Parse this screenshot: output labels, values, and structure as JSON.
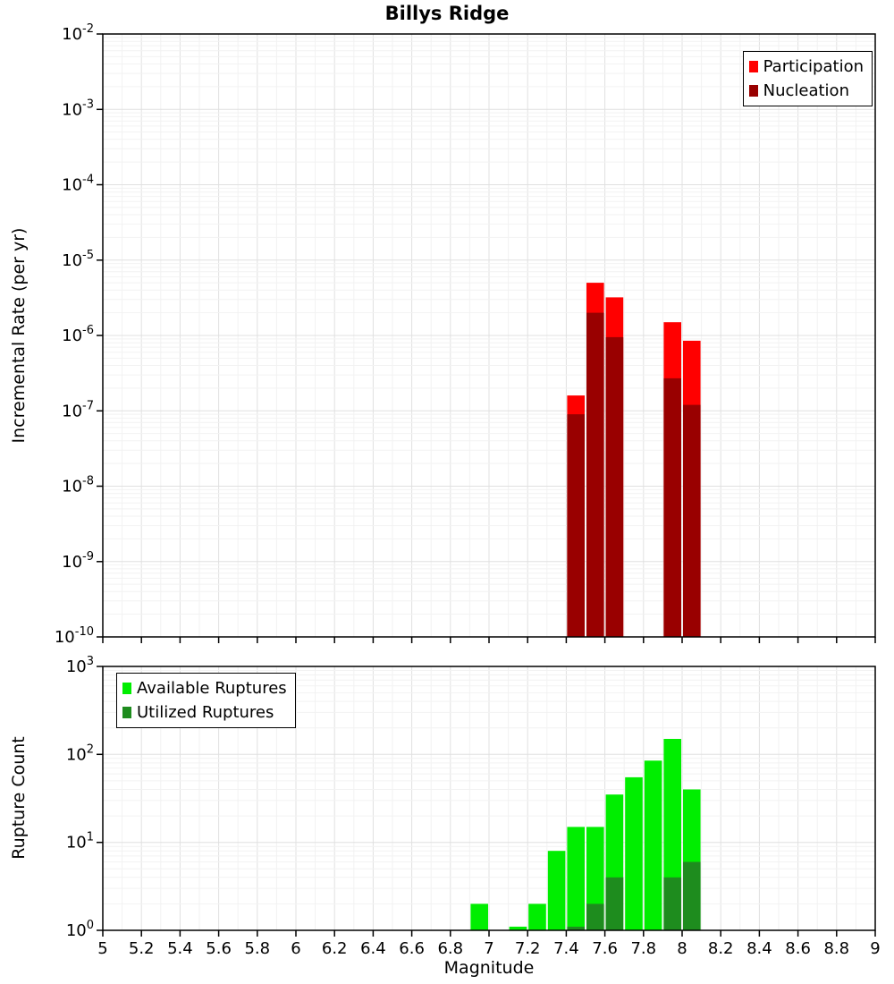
{
  "title": "Billys Ridge",
  "colors": {
    "participation": "#FF0000",
    "nucleation": "#990000",
    "available": "#00EE00",
    "utilized": "#1E8C1E",
    "grid_major": "#E0E0E0",
    "grid_minor": "#F2F2F2",
    "axis": "#000000"
  },
  "x_axis": {
    "label": "Magnitude",
    "min": 5,
    "max": 9,
    "tick_step": 0.2,
    "tick_labels": [
      "5",
      "5.2",
      "5.4",
      "5.6",
      "5.8",
      "6",
      "6.2",
      "6.4",
      "6.6",
      "6.8",
      "7",
      "7.2",
      "7.4",
      "7.6",
      "7.8",
      "8",
      "8.2",
      "8.4",
      "8.6",
      "8.8",
      "9"
    ]
  },
  "top_panel": {
    "y_label": "Incremental Rate (per yr)",
    "legend": [
      {
        "label": "Participation",
        "color_key": "participation"
      },
      {
        "label": "Nucleation",
        "color_key": "nucleation"
      }
    ]
  },
  "bottom_panel": {
    "y_label": "Rupture Count",
    "legend": [
      {
        "label": "Available Ruptures",
        "color_key": "available"
      },
      {
        "label": "Utilized Ruptures",
        "color_key": "utilized"
      }
    ]
  },
  "chart_data": [
    {
      "type": "bar",
      "panel": "top",
      "title": "Billys Ridge",
      "xlabel": "Magnitude",
      "ylabel": "Incremental Rate (per yr)",
      "yscale": "log",
      "xlim": [
        5,
        9
      ],
      "ylim": [
        1e-10,
        0.01
      ],
      "bar_width": 0.1,
      "x": [
        7.45,
        7.55,
        7.65,
        7.95,
        8.05
      ],
      "series": [
        {
          "name": "Participation",
          "color_key": "participation",
          "values": [
            1.6e-07,
            5e-06,
            3.2e-06,
            1.5e-06,
            8.5e-07
          ]
        },
        {
          "name": "Nucleation",
          "color_key": "nucleation",
          "values": [
            9e-08,
            2e-06,
            9.5e-07,
            2.7e-07,
            1.2e-07
          ]
        }
      ],
      "legend_position": "top-right",
      "grid": true
    },
    {
      "type": "bar",
      "panel": "bottom",
      "xlabel": "Magnitude",
      "ylabel": "Rupture Count",
      "yscale": "log",
      "xlim": [
        5,
        9
      ],
      "ylim": [
        1,
        1000
      ],
      "bar_width": 0.1,
      "x": [
        6.95,
        7.15,
        7.25,
        7.35,
        7.45,
        7.55,
        7.65,
        7.75,
        7.85,
        7.95,
        8.05
      ],
      "series": [
        {
          "name": "Available Ruptures",
          "color_key": "available",
          "values": [
            2,
            1.1,
            2,
            8,
            15,
            15,
            35,
            55,
            85,
            150,
            40
          ]
        },
        {
          "name": "Utilized Ruptures",
          "color_key": "utilized",
          "values": [
            null,
            null,
            null,
            null,
            1.1,
            2,
            4,
            null,
            null,
            4,
            6
          ]
        }
      ],
      "legend_position": "top-left",
      "grid": true
    }
  ]
}
